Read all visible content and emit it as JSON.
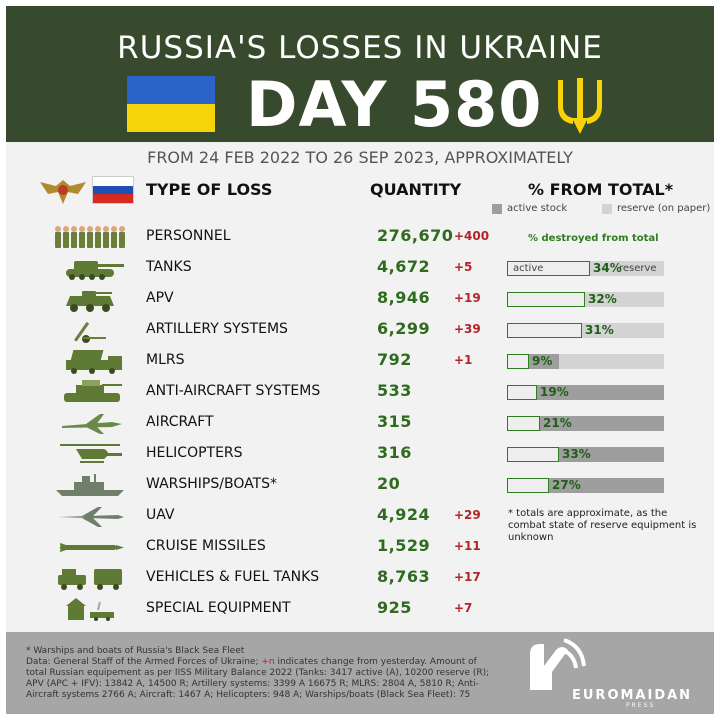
{
  "header": {
    "title": "RUSSIA'S LOSSES IN UKRAINE",
    "day": "DAY 580"
  },
  "subtitle": "FROM 24 FEB 2022 TO 26 SEP 2023, APPROXIMATELY",
  "columns": {
    "type": "TYPE OF LOSS",
    "quantity": "QUANTITY",
    "percent": "% FROM TOTAL*",
    "legend_active": "active stock",
    "legend_reserve": "reserve (on paper)"
  },
  "destroyed_note": "% destroyed from total",
  "bar_tags": {
    "active": "active",
    "reserve": "reserve"
  },
  "rows": [
    {
      "icon": "soldiers-icon",
      "label": "PERSONNEL",
      "quantity": "276,670",
      "delta": "+400"
    },
    {
      "icon": "tank-icon",
      "label": "TANKS",
      "quantity": "4,672",
      "delta": "+5",
      "active_share": 0.25,
      "destroyed_share": 0.34,
      "percent": "34%"
    },
    {
      "icon": "apv-icon",
      "label": "APV",
      "quantity": "8,946",
      "delta": "+19",
      "active_share": 0.49,
      "destroyed_share": 0.32,
      "percent": "32%"
    },
    {
      "icon": "artillery-icon",
      "label": "ARTILLERY SYSTEMS",
      "quantity": "6,299",
      "delta": "+39",
      "active_share": 0.17,
      "destroyed_share": 0.31,
      "percent": "31%"
    },
    {
      "icon": "mlrs-icon",
      "label": "MLRS",
      "quantity": "792",
      "delta": "+1",
      "active_share": 0.33,
      "destroyed_share": 0.09,
      "percent": "9%"
    },
    {
      "icon": "anti-aircraft-icon",
      "label": "ANTI-AIRCRAFT SYSTEMS",
      "quantity": "533",
      "delta": "",
      "active_share": 1.0,
      "destroyed_share": 0.19,
      "percent": "19%"
    },
    {
      "icon": "aircraft-icon",
      "label": "AIRCRAFT",
      "quantity": "315",
      "delta": "",
      "active_share": 1.0,
      "destroyed_share": 0.21,
      "percent": "21%"
    },
    {
      "icon": "helicopter-icon",
      "label": "HELICOPTERS",
      "quantity": "316",
      "delta": "",
      "active_share": 1.0,
      "destroyed_share": 0.33,
      "percent": "33%"
    },
    {
      "icon": "warship-icon",
      "label": "WARSHIPS/BOATS*",
      "quantity": "20",
      "delta": "",
      "active_share": 1.0,
      "destroyed_share": 0.27,
      "percent": "27%"
    },
    {
      "icon": "uav-icon",
      "label": "UAV",
      "quantity": "4,924",
      "delta": "+29"
    },
    {
      "icon": "missile-icon",
      "label": "CRUISE MISSILES",
      "quantity": "1,529",
      "delta": "+11"
    },
    {
      "icon": "vehicles-icon",
      "label": "VEHICLES & FUEL TANKS",
      "quantity": "8,763",
      "delta": "+17"
    },
    {
      "icon": "special-equipment-icon",
      "label": "SPECIAL EQUIPMENT",
      "quantity": "925",
      "delta": "+7"
    }
  ],
  "note": "* totals are approximate, as the combat state of reserve equipment is unknown",
  "footer": {
    "line1": "* Warships and boats of Russia's Black Sea Fleet",
    "line2a": "Data: General Staff of the Armed Forces of Ukraine; ",
    "line2b": "+n",
    "line2c": " indicates change from yesterday. Amount of total Russian equipement as per IISS Military Balance 2022 (Tanks: 3417 active (A), 10200 reserve (R); APV (APC + IFV): 13842 A, 14500 R; Artillery systems: 3399 A 16675 R; MLRS: 2804 A, 5810 R; Anti-Aircraft systems 2766 A; Aircraft: 1467 A; Helicopters: 948 A; Warships/boats (Black Sea Fleet): 75",
    "brand": "EUROMAIDAN",
    "brand_sub": "PRESS"
  },
  "colors": {
    "header_bg": "#384a2d",
    "quantity": "#2f6b1f",
    "delta": "#b3242a",
    "active": "#9e9e9e",
    "reserve": "#d3d3d3",
    "destroyed_border": "#2e7d1f"
  }
}
